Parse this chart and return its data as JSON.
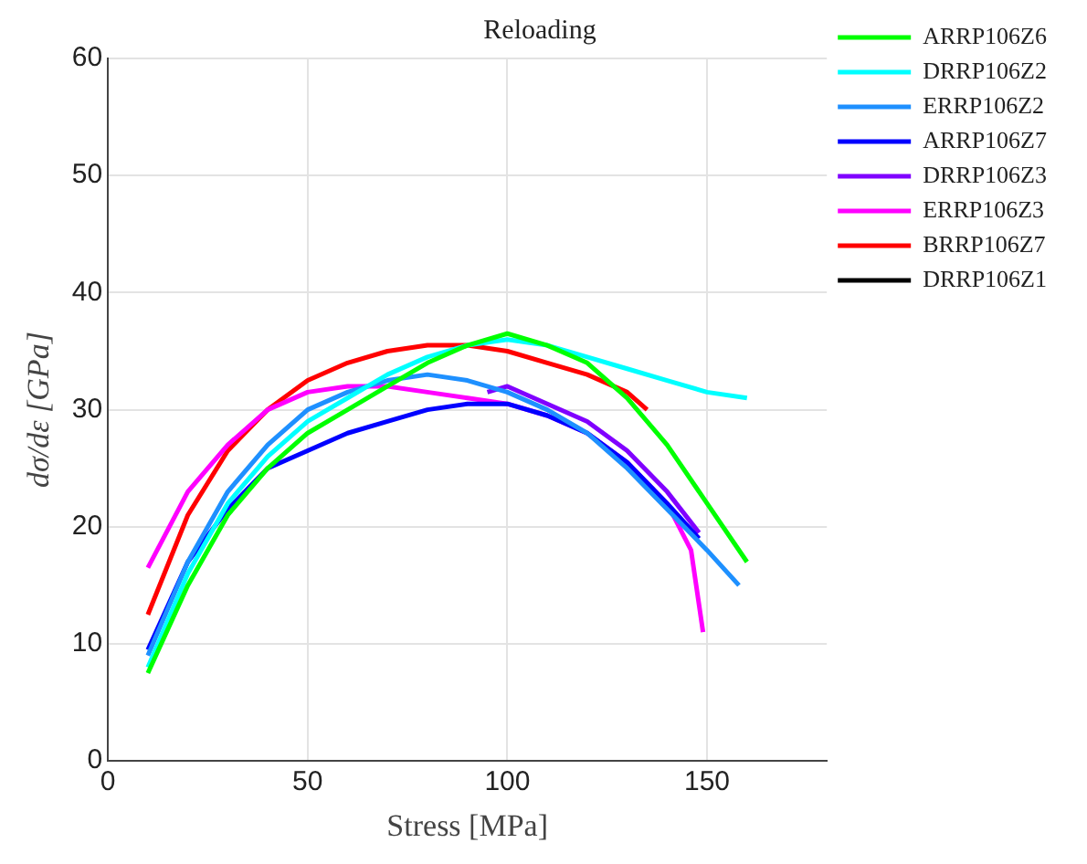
{
  "chart_data": {
    "type": "line",
    "title": "Reloading",
    "xlabel": "Stress [MPa]",
    "ylabel": "dσ/dε [GPa]",
    "xlim": [
      0,
      180
    ],
    "xticks": [
      0,
      50,
      100,
      150
    ],
    "ylim": [
      0,
      60
    ],
    "yticks": [
      0,
      10,
      20,
      30,
      40,
      50,
      60
    ],
    "grid": true,
    "legend": "top right",
    "marker": "none",
    "line_style": "solid",
    "series": [
      {
        "name": "ARRP106Z6",
        "color": "#00ff00",
        "x": [
          10,
          20,
          30,
          40,
          50,
          60,
          70,
          80,
          90,
          100,
          110,
          120,
          130,
          140,
          150,
          160
        ],
        "values": [
          7.5,
          15,
          21,
          25,
          28,
          30,
          32,
          34,
          35.5,
          36.5,
          35.5,
          34,
          31,
          27,
          22,
          17
        ]
      },
      {
        "name": "DRRP106Z2",
        "color": "#00ffff",
        "x": [
          10,
          20,
          30,
          40,
          50,
          60,
          70,
          80,
          90,
          100,
          110,
          120,
          130,
          140,
          150,
          160
        ],
        "values": [
          8,
          16,
          22,
          26,
          29,
          31,
          33,
          34.5,
          35.5,
          36,
          35.5,
          34.5,
          33.5,
          32.5,
          31.5,
          31
        ]
      },
      {
        "name": "ERRP106Z2",
        "color": "#1e90ff",
        "x": [
          10,
          20,
          30,
          40,
          50,
          60,
          70,
          80,
          90,
          100,
          110,
          120,
          130,
          140,
          150,
          158
        ],
        "values": [
          9,
          17,
          23,
          27,
          30,
          31.5,
          32.5,
          33,
          32.5,
          31.5,
          30,
          28,
          25,
          21.5,
          18,
          15
        ]
      },
      {
        "name": "ARRP106Z7",
        "color": "#0000ff",
        "x": [
          10,
          20,
          30,
          40,
          50,
          60,
          70,
          80,
          90,
          100,
          110,
          120,
          130,
          140,
          148
        ],
        "values": [
          9.5,
          17,
          21.5,
          25,
          26.5,
          28,
          29,
          30,
          30.5,
          30.5,
          29.5,
          28,
          25.5,
          22,
          19
        ]
      },
      {
        "name": "DRRP106Z3",
        "color": "#8000ff",
        "x": [
          95,
          100,
          110,
          120,
          130,
          140,
          148
        ],
        "values": [
          31.5,
          32,
          30.5,
          29,
          26.5,
          23,
          19.5
        ]
      },
      {
        "name": "ERRP106Z3",
        "color": "#ff00ff",
        "x": [
          10,
          20,
          30,
          40,
          50,
          60,
          70,
          80,
          90,
          100,
          110,
          120,
          130,
          140,
          146,
          149
        ],
        "values": [
          16.5,
          23,
          27,
          30,
          31.5,
          32,
          32,
          31.5,
          31,
          30.5,
          29.5,
          28,
          25.5,
          22,
          18,
          11
        ]
      },
      {
        "name": "BRRP106Z7",
        "color": "#ff0000",
        "x": [
          10,
          20,
          30,
          40,
          50,
          60,
          70,
          80,
          90,
          100,
          110,
          120,
          130,
          135
        ],
        "values": [
          12.5,
          21,
          26.5,
          30,
          32.5,
          34,
          35,
          35.5,
          35.5,
          35,
          34,
          33,
          31.5,
          30
        ]
      },
      {
        "name": "DRRP106Z1",
        "color": "#000000"
      }
    ]
  }
}
